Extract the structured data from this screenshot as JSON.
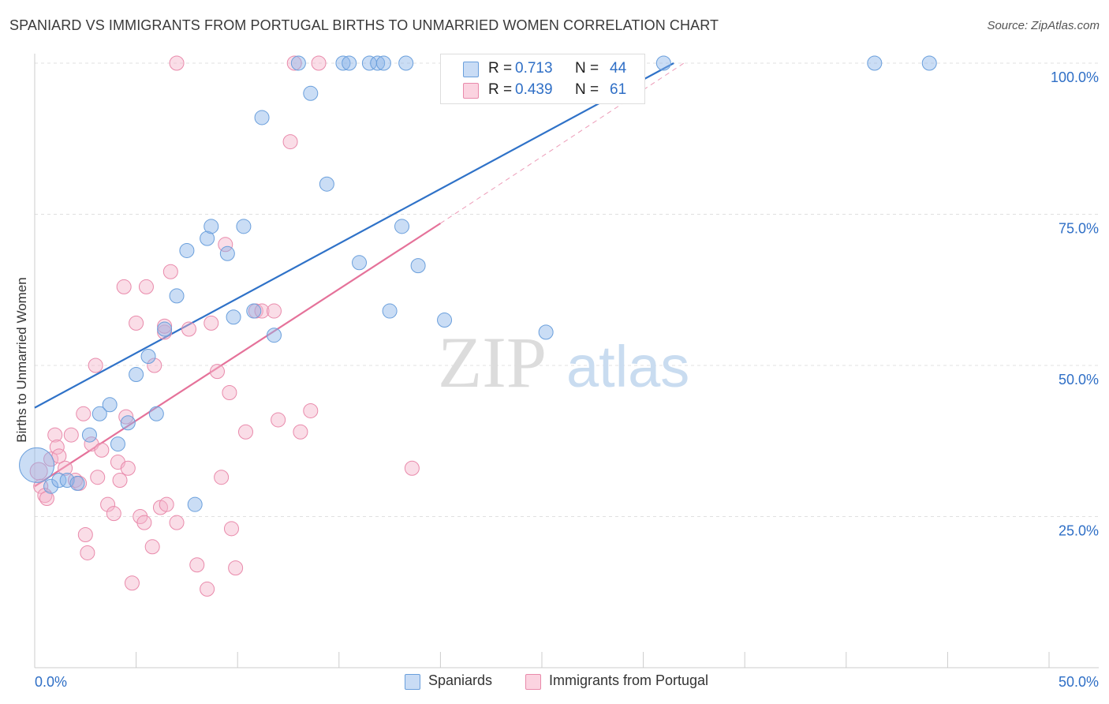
{
  "title": "SPANIARD VS IMMIGRANTS FROM PORTUGAL BIRTHS TO UNMARRIED WOMEN CORRELATION CHART",
  "source": "Source: ZipAtlas.com",
  "watermark": {
    "zip": "ZIP",
    "atlas": "atlas"
  },
  "legend_stats": [
    {
      "r_label": "R =",
      "r_value": "0.713",
      "n_label": "N =",
      "n_value": "44",
      "color": "#8ab4e8"
    },
    {
      "r_label": "R =",
      "r_value": "0.439",
      "n_label": "N =",
      "n_value": "61",
      "color": "#f0a0bb"
    }
  ],
  "chart_data": {
    "type": "scatter",
    "title": "SPANIARD VS IMMIGRANTS FROM PORTUGAL BIRTHS TO UNMARRIED WOMEN CORRELATION CHART",
    "xlabel": "",
    "ylabel": "Births to Unmarried Women",
    "xlim": [
      0,
      50
    ],
    "ylim": [
      0,
      100
    ],
    "x_tick_labels": [
      "0.0%",
      "50.0%"
    ],
    "y_ticks": [
      25,
      50,
      75,
      100
    ],
    "y_tick_labels": [
      "25.0%",
      "50.0%",
      "75.0%",
      "100.0%"
    ],
    "grid": true,
    "legend_position": "bottom",
    "series": [
      {
        "name": "Spaniards",
        "color": "#8ab4e8",
        "stroke": "#6a9fdc",
        "line_color": "#2f72c8",
        "trend": {
          "x0": 0,
          "y0": 43,
          "x1": 31.5,
          "y1": 100
        },
        "points": [
          [
            0.1,
            33.5,
            22
          ],
          [
            0.8,
            30,
            9
          ],
          [
            1.2,
            31,
            9
          ],
          [
            1.6,
            31,
            9
          ],
          [
            2.1,
            30.5,
            9
          ],
          [
            2.7,
            38.5,
            9
          ],
          [
            3.2,
            42,
            9
          ],
          [
            3.7,
            43.5,
            9
          ],
          [
            4.1,
            37,
            9
          ],
          [
            4.6,
            40.5,
            9
          ],
          [
            5.0,
            48.5,
            9
          ],
          [
            5.6,
            51.5,
            9
          ],
          [
            6.0,
            42,
            9
          ],
          [
            6.4,
            56,
            9
          ],
          [
            7.0,
            61.5,
            9
          ],
          [
            7.5,
            69,
            9
          ],
          [
            7.9,
            27,
            9
          ],
          [
            8.5,
            71,
            9
          ],
          [
            8.7,
            73,
            9
          ],
          [
            9.5,
            68.5,
            9
          ],
          [
            9.8,
            58,
            9
          ],
          [
            10.3,
            73,
            9
          ],
          [
            10.8,
            59,
            9
          ],
          [
            11.2,
            91,
            9
          ],
          [
            11.8,
            55,
            9
          ],
          [
            13.0,
            100,
            9
          ],
          [
            13.6,
            95,
            9
          ],
          [
            14.4,
            80,
            9
          ],
          [
            15.2,
            100,
            9
          ],
          [
            15.5,
            100,
            9
          ],
          [
            16.0,
            67,
            9
          ],
          [
            16.5,
            100,
            9
          ],
          [
            16.9,
            100,
            9
          ],
          [
            17.2,
            100,
            9
          ],
          [
            17.5,
            59,
            9
          ],
          [
            18.1,
            73,
            9
          ],
          [
            18.3,
            100,
            9
          ],
          [
            18.9,
            66.5,
            9
          ],
          [
            20.2,
            57.5,
            9
          ],
          [
            22.8,
            100,
            9
          ],
          [
            25.2,
            55.5,
            9
          ],
          [
            31.0,
            100,
            9
          ],
          [
            41.4,
            100,
            9
          ],
          [
            44.1,
            100,
            9
          ]
        ]
      },
      {
        "name": "Immigrants from Portugal",
        "color": "#f3b3c9",
        "stroke": "#e98aab",
        "line_color": "#e5729a",
        "trend": {
          "x0": 0,
          "y0": 30,
          "x1": 20,
          "y1": 73.5
        },
        "trend_ext": {
          "x0": 20,
          "y0": 73.5,
          "x1": 32,
          "y1": 100
        },
        "points": [
          [
            0.2,
            32.5,
            11
          ],
          [
            0.3,
            30,
            9
          ],
          [
            0.5,
            28.5,
            9
          ],
          [
            0.6,
            28,
            9
          ],
          [
            0.8,
            34.5,
            9
          ],
          [
            1.0,
            38.5,
            9
          ],
          [
            1.1,
            36.5,
            9
          ],
          [
            1.2,
            35,
            9
          ],
          [
            1.5,
            33,
            9
          ],
          [
            1.8,
            38.5,
            9
          ],
          [
            2.0,
            31,
            9
          ],
          [
            2.4,
            42,
            9
          ],
          [
            2.5,
            22,
            9
          ],
          [
            2.6,
            19,
            9
          ],
          [
            2.8,
            37,
            9
          ],
          [
            3.0,
            50,
            9
          ],
          [
            3.1,
            31.5,
            9
          ],
          [
            3.3,
            36,
            9
          ],
          [
            3.6,
            27,
            9
          ],
          [
            3.9,
            25.5,
            9
          ],
          [
            4.1,
            34,
            9
          ],
          [
            4.2,
            31,
            9
          ],
          [
            4.4,
            63,
            9
          ],
          [
            4.5,
            41.5,
            9
          ],
          [
            4.6,
            33,
            9
          ],
          [
            4.8,
            14,
            9
          ],
          [
            5.0,
            57,
            9
          ],
          [
            5.2,
            25,
            9
          ],
          [
            5.4,
            24,
            9
          ],
          [
            5.5,
            63,
            9
          ],
          [
            5.8,
            20,
            9
          ],
          [
            5.9,
            50,
            9
          ],
          [
            6.2,
            26.5,
            9
          ],
          [
            6.4,
            55.5,
            9
          ],
          [
            6.5,
            27,
            9
          ],
          [
            6.7,
            65.5,
            9
          ],
          [
            7.0,
            24,
            9
          ],
          [
            7.6,
            56,
            9
          ],
          [
            8.0,
            17,
            9
          ],
          [
            8.5,
            13,
            9
          ],
          [
            8.7,
            57,
            9
          ],
          [
            9.0,
            49,
            9
          ],
          [
            9.2,
            31.5,
            9
          ],
          [
            9.4,
            70,
            9
          ],
          [
            9.6,
            45.5,
            9
          ],
          [
            9.7,
            23,
            9
          ],
          [
            9.9,
            16.5,
            9
          ],
          [
            10.4,
            39,
            9
          ],
          [
            10.9,
            59,
            9
          ],
          [
            11.2,
            59,
            9
          ],
          [
            11.8,
            59,
            9
          ],
          [
            12.0,
            41,
            9
          ],
          [
            12.6,
            87,
            9
          ],
          [
            12.8,
            100,
            9
          ],
          [
            13.1,
            39,
            9
          ],
          [
            13.6,
            42.5,
            9
          ],
          [
            14.0,
            100,
            9
          ],
          [
            18.6,
            33,
            9
          ],
          [
            7.0,
            100,
            9
          ],
          [
            6.4,
            56.5,
            9
          ],
          [
            2.2,
            30.5,
            9
          ]
        ]
      }
    ]
  }
}
